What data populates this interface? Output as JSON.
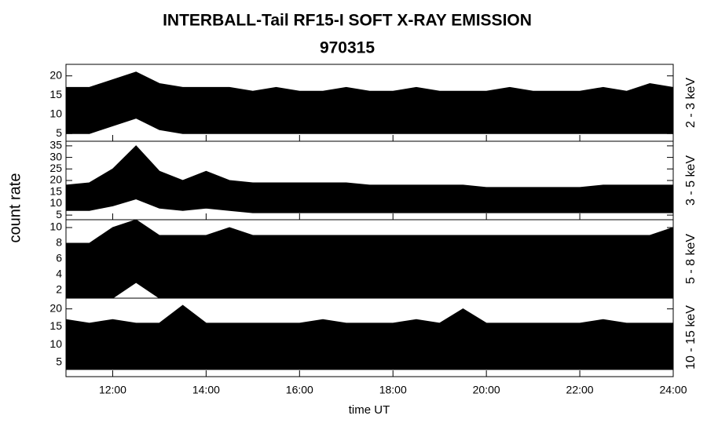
{
  "title": "INTERBALL-Tail RF15-I SOFT X-RAY EMISSION",
  "subtitle": "970315",
  "ylabel": "count rate",
  "xlabel": "time UT",
  "chart_data": [
    {
      "type": "range",
      "label": "2 - 3 keV",
      "color": "#000000",
      "x": [
        11,
        11.5,
        12,
        12.5,
        13,
        13.5,
        14,
        14.5,
        15,
        15.5,
        16,
        16.5,
        17,
        17.5,
        18,
        18.5,
        19,
        19.5,
        20,
        20.5,
        21,
        21.5,
        22,
        22.5,
        23,
        23.5,
        24
      ],
      "high": [
        17,
        17,
        19,
        21,
        18,
        17,
        17,
        17,
        16,
        17,
        16,
        16,
        17,
        16,
        16,
        17,
        16,
        16,
        16,
        17,
        16,
        16,
        16,
        17,
        16,
        18,
        17
      ],
      "low": [
        5,
        5,
        7,
        9,
        6,
        5,
        5,
        5,
        5,
        5,
        5,
        5,
        5,
        5,
        5,
        5,
        5,
        5,
        5,
        5,
        5,
        5,
        5,
        5,
        5,
        5,
        5
      ],
      "xlim": [
        11,
        24
      ],
      "ylim": [
        3,
        23
      ],
      "yticks": [
        5,
        10,
        15,
        20
      ]
    },
    {
      "type": "range",
      "label": "3 - 5 keV",
      "color": "#000000",
      "x": [
        11,
        11.5,
        12,
        12.5,
        13,
        13.5,
        14,
        14.5,
        15,
        15.5,
        16,
        16.5,
        17,
        17.5,
        18,
        18.5,
        19,
        19.5,
        20,
        20.5,
        21,
        21.5,
        22,
        22.5,
        23,
        23.5,
        24
      ],
      "high": [
        18,
        19,
        25,
        35,
        24,
        20,
        24,
        20,
        19,
        19,
        19,
        19,
        19,
        18,
        18,
        18,
        18,
        18,
        17,
        17,
        17,
        17,
        17,
        18,
        18,
        18,
        18
      ],
      "low": [
        7,
        7,
        9,
        12,
        8,
        7,
        8,
        7,
        6,
        6,
        6,
        6,
        6,
        6,
        6,
        6,
        6,
        6,
        6,
        6,
        6,
        6,
        6,
        6,
        6,
        6,
        6
      ],
      "xlim": [
        11,
        24
      ],
      "ylim": [
        3,
        37
      ],
      "yticks": [
        5,
        10,
        15,
        20,
        25,
        30,
        35
      ]
    },
    {
      "type": "range",
      "label": "5 - 8 keV",
      "color": "#000000",
      "x": [
        11,
        11.5,
        12,
        12.5,
        13,
        13.5,
        14,
        14.5,
        15,
        15.5,
        16,
        16.5,
        17,
        17.5,
        18,
        18.5,
        19,
        19.5,
        20,
        20.5,
        21,
        21.5,
        22,
        22.5,
        23,
        23.5,
        24
      ],
      "high": [
        8,
        8,
        10,
        11,
        9,
        9,
        9,
        10,
        9,
        9,
        9,
        9,
        9,
        9,
        9,
        9,
        9,
        9,
        9,
        9,
        9,
        9,
        9,
        9,
        9,
        9,
        10
      ],
      "low": [
        1,
        1,
        1,
        3,
        1,
        1,
        1,
        1,
        1,
        1,
        1,
        1,
        1,
        1,
        1,
        1,
        1,
        1,
        1,
        1,
        1,
        1,
        1,
        1,
        1,
        1,
        1
      ],
      "xlim": [
        11,
        24
      ],
      "ylim": [
        1,
        11
      ],
      "yticks": [
        2,
        4,
        6,
        8,
        10
      ]
    },
    {
      "type": "range",
      "label": "10 - 15 keV",
      "color": "#000000",
      "x": [
        11,
        11.5,
        12,
        12.5,
        13,
        13.5,
        14,
        14.5,
        15,
        15.5,
        16,
        16.5,
        17,
        17.5,
        18,
        18.5,
        19,
        19.5,
        20,
        20.5,
        21,
        21.5,
        22,
        22.5,
        23,
        23.5,
        24
      ],
      "high": [
        17,
        16,
        17,
        16,
        16,
        21,
        16,
        16,
        16,
        16,
        16,
        17,
        16,
        16,
        16,
        17,
        16,
        20,
        16,
        16,
        16,
        16,
        16,
        17,
        16,
        16,
        16
      ],
      "low": [
        3,
        3,
        3,
        3,
        3,
        3,
        3,
        3,
        3,
        3,
        3,
        3,
        3,
        3,
        3,
        3,
        3,
        3,
        3,
        3,
        3,
        3,
        3,
        3,
        3,
        3,
        3
      ],
      "xlim": [
        11,
        24
      ],
      "ylim": [
        1,
        23
      ],
      "yticks": [
        5,
        10,
        15,
        20
      ],
      "xticks": [
        {
          "value": 12,
          "label": "12:00"
        },
        {
          "value": 14,
          "label": "14:00"
        },
        {
          "value": 16,
          "label": "16:00"
        },
        {
          "value": 18,
          "label": "18:00"
        },
        {
          "value": 20,
          "label": "20:00"
        },
        {
          "value": 22,
          "label": "22:00"
        },
        {
          "value": 24,
          "label": "24:00"
        }
      ]
    }
  ]
}
